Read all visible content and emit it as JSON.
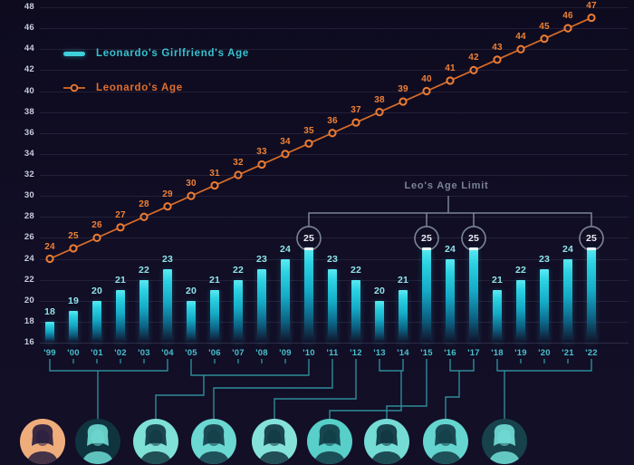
{
  "chart_data": {
    "type": "combo_bar_line",
    "categories": [
      "'99",
      "'00",
      "'01",
      "'02",
      "'03",
      "'04",
      "'05",
      "'06",
      "'07",
      "'08",
      "'09",
      "'10",
      "'11",
      "'12",
      "'13",
      "'14",
      "'15",
      "'16",
      "'17",
      "'18",
      "'19",
      "'20",
      "'21",
      "'22"
    ],
    "series": [
      {
        "name": "Leonardo's Girlfriend's Age",
        "type": "bar",
        "values": [
          18,
          19,
          20,
          21,
          22,
          23,
          20,
          21,
          22,
          23,
          24,
          25,
          23,
          22,
          20,
          21,
          25,
          24,
          25,
          21,
          22,
          23,
          24,
          25
        ]
      },
      {
        "name": "Leonardo's Age",
        "type": "line",
        "values": [
          24,
          25,
          26,
          27,
          28,
          29,
          30,
          31,
          32,
          33,
          34,
          35,
          36,
          37,
          38,
          39,
          40,
          41,
          42,
          43,
          44,
          45,
          46,
          47
        ]
      }
    ],
    "ylim": [
      16,
      48
    ],
    "ytick_step": 2,
    "grid": "horizontal",
    "legend_position": "top-left",
    "annotations": {
      "age_limit_label": "Leo's Age Limit",
      "circled_years": [
        "'10",
        "'15",
        "'17",
        "'22"
      ]
    },
    "year_groups": [
      {
        "years": [
          "'99",
          "'04"
        ]
      },
      {
        "years": [
          "'05",
          "'10"
        ]
      },
      {
        "years": [
          "'11"
        ]
      },
      {
        "years": [
          "'12"
        ]
      },
      {
        "years": [
          "'13",
          "'14"
        ]
      },
      {
        "years": [
          "'15"
        ]
      },
      {
        "years": [
          "'16",
          "'17"
        ]
      },
      {
        "years": [
          "'18",
          "'22"
        ]
      }
    ]
  },
  "legend": {
    "bar_label": "Leonardo's Girlfriend's Age",
    "line_label": "Leonardo's Age"
  },
  "colors": {
    "background": "#0f0c21",
    "bar_accent": "#3fd0dc",
    "bar_label": "#8fe6ec",
    "year_label": "#46c2ce",
    "axis_label": "#c7cddb",
    "line": "#d96c28",
    "line_marker_stroke": "#ee7c31",
    "line_label": "#ef8034",
    "legend_bar_text": "#35c3d1",
    "legend_line_text": "#e06f2e",
    "limit_gray": "#7b8496",
    "connector": "#2e8b98",
    "circled_value_text": "#e8edf4"
  },
  "portraits": [
    {
      "subject": "leonardo",
      "tint": "#f0ad7c",
      "ink": "#261c3e"
    },
    {
      "subject": "girlfriend-1",
      "tint": "#10343f",
      "ink": "#6fdcd4"
    },
    {
      "subject": "girlfriend-2",
      "tint": "#7fe0d8",
      "ink": "#0f3540"
    },
    {
      "subject": "girlfriend-3",
      "tint": "#6bd8d2",
      "ink": "#123a45"
    },
    {
      "subject": "girlfriend-4",
      "tint": "#84e2da",
      "ink": "#0f3440"
    },
    {
      "subject": "girlfriend-5",
      "tint": "#58cfc9",
      "ink": "#113844"
    },
    {
      "subject": "girlfriend-6",
      "tint": "#74dcd5",
      "ink": "#0e313d"
    },
    {
      "subject": "girlfriend-7",
      "tint": "#65d5cf",
      "ink": "#123a45"
    },
    {
      "subject": "girlfriend-8",
      "tint": "#17424c",
      "ink": "#72dfd7"
    }
  ]
}
